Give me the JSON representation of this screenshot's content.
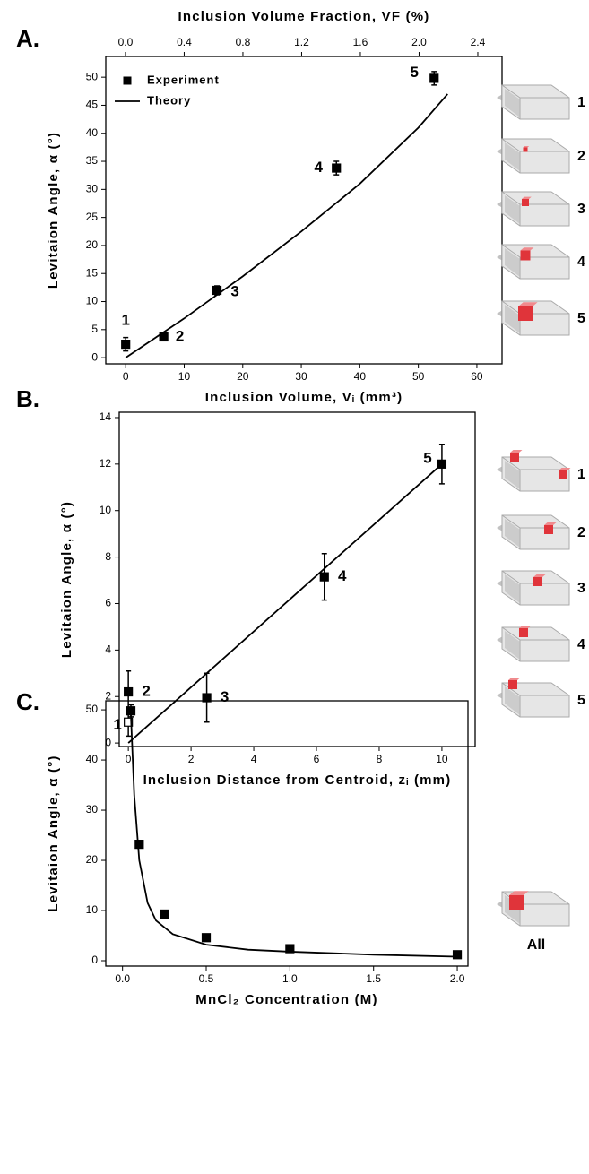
{
  "chart_data": [
    {
      "type": "scatter",
      "panel": "A.",
      "x_label": "Inclusion Volume, Vᵢ (mm³)",
      "y_label": "Levitaion Angle, α (°)",
      "x2_label": "Inclusion Volume Fraction, VF (%)",
      "xlim": [
        -3.4,
        64.3
      ],
      "xticks": [
        0,
        10,
        20,
        30,
        40,
        50,
        60
      ],
      "ylim": [
        -1.1,
        53.7
      ],
      "yticks": [
        0,
        5,
        10,
        15,
        20,
        25,
        30,
        35,
        40,
        45,
        50
      ],
      "x2lim": [
        -0.134,
        2.565
      ],
      "x2ticks": [
        {
          "value": 0,
          "label": "0.0"
        },
        {
          "value": 0.4,
          "label": "0.4"
        },
        {
          "value": 0.8,
          "label": "0.8"
        },
        {
          "value": 1.2,
          "label": "1.2"
        },
        {
          "value": 1.6,
          "label": "1.6"
        },
        {
          "value": 2.0,
          "label": "2.0"
        },
        {
          "value": 2.4,
          "label": "2.4"
        }
      ],
      "legend": "upper left",
      "series": [
        {
          "name": "Experiment",
          "type": "scatter",
          "color": "#000000",
          "x": [
            0,
            6.5,
            15.6,
            36,
            52.7
          ],
          "y": [
            2.4,
            3.7,
            12,
            33.8,
            49.8
          ],
          "errors": [
            1.2,
            0.5,
            0.8,
            1.2,
            1.2
          ],
          "filled": [
            true,
            true,
            true,
            true,
            true
          ],
          "point_labels": [
            "1",
            "2",
            "3",
            "4",
            "5"
          ]
        },
        {
          "name": "Theory",
          "type": "line",
          "color": "#000000",
          "x": [
            0,
            10,
            20,
            30,
            40,
            50,
            55
          ],
          "y": [
            0,
            7,
            14.5,
            22.5,
            31,
            41,
            47
          ]
        }
      ],
      "inset_labels": [
        "1",
        "2",
        "3",
        "4",
        "5"
      ]
    },
    {
      "type": "scatter",
      "panel": "B.",
      "x_label": "Inclusion Distance from Centroid, zᵢ (mm)",
      "y_label": "Levitaion Angle, α (°)",
      "xlim": [
        -0.29,
        11.06
      ],
      "xticks": [
        0,
        2,
        4,
        6,
        8,
        10
      ],
      "ylim": [
        -0.15,
        14.23
      ],
      "yticks": [
        0,
        2,
        4,
        6,
        8,
        10,
        12,
        14
      ],
      "series": [
        {
          "type": "scatter",
          "color": "#000000",
          "x": [
            0,
            0,
            2.5,
            6.25,
            10
          ],
          "y": [
            0.9,
            2.2,
            1.95,
            7.15,
            12
          ],
          "errors": [
            0.6,
            0.9,
            1.05,
            1.0,
            0.85
          ],
          "filled": [
            false,
            true,
            true,
            true,
            true
          ],
          "point_labels": [
            "1",
            "2",
            "3",
            "4",
            "5"
          ]
        },
        {
          "type": "line",
          "color": "#000000",
          "x": [
            0,
            10
          ],
          "y": [
            0,
            12
          ]
        }
      ],
      "inset_labels": [
        "1",
        "2",
        "3",
        "4",
        "5"
      ]
    },
    {
      "type": "scatter",
      "panel": "C.",
      "x_label": "MnCl₂ Concentration (M)",
      "y_label": "Levitaion Angle, α (°)",
      "xlim": [
        -0.1,
        2.064
      ],
      "xticks": [
        {
          "value": 0,
          "label": "0.0"
        },
        {
          "value": 0.5,
          "label": "0.5"
        },
        {
          "value": 1,
          "label": "1.0"
        },
        {
          "value": 1.5,
          "label": "1.5"
        },
        {
          "value": 2,
          "label": "2.0"
        }
      ],
      "ylim": [
        -1.07,
        51.8
      ],
      "yticks": [
        0,
        10,
        20,
        30,
        40,
        50
      ],
      "series": [
        {
          "type": "scatter",
          "color": "#000000",
          "x": [
            0.05,
            0.1,
            0.25,
            0.5,
            1.0,
            2.0
          ],
          "y": [
            49.8,
            23.2,
            9.3,
            4.6,
            2.4,
            1.2
          ],
          "errors": [
            1.2,
            null,
            null,
            null,
            null,
            null
          ],
          "filled": [
            true,
            true,
            true,
            true,
            true,
            true
          ]
        },
        {
          "type": "line",
          "color": "#000000",
          "x": [
            0.05,
            0.07,
            0.1,
            0.15,
            0.2,
            0.3,
            0.5,
            0.75,
            1,
            1.5,
            2
          ],
          "y": [
            49,
            33,
            20,
            11.5,
            8,
            5.3,
            3.2,
            2.2,
            1.8,
            1.2,
            0.8
          ]
        }
      ],
      "inset_labels": [
        "All"
      ]
    }
  ]
}
